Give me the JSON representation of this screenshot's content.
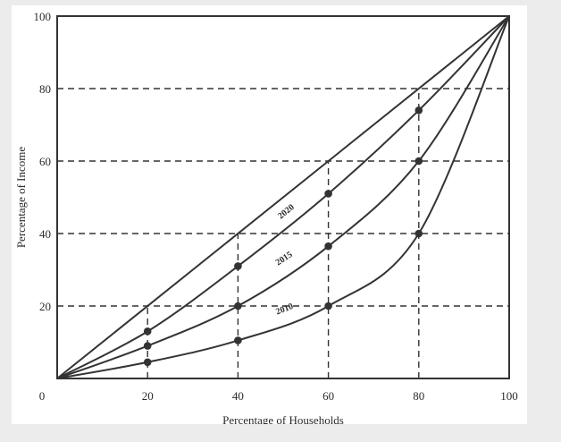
{
  "chart_data": {
    "type": "line",
    "xlabel": "Percentage of Households",
    "ylabel": "Percentage of Income",
    "xlim": [
      0,
      100
    ],
    "ylim": [
      0,
      100
    ],
    "x_ticks": [
      "0",
      "20",
      "40",
      "60",
      "80",
      "100"
    ],
    "y_ticks": [
      "20",
      "40",
      "60",
      "80",
      "100"
    ],
    "grid": "dashed reference lines at 20, 40, 60, 80",
    "colors": {
      "line": "#333333",
      "grid": "#333333",
      "frame": "#333333"
    },
    "series": [
      {
        "x": [
          0,
          100
        ],
        "y": [
          0,
          100
        ],
        "markers": false
      },
      {
        "name": "2020",
        "x": [
          0,
          20,
          40,
          60,
          80,
          100
        ],
        "y": [
          0,
          13,
          31,
          51,
          74,
          100
        ],
        "markers": true,
        "label_at": [
          51,
          45.5
        ]
      },
      {
        "name": "2015",
        "x": [
          0,
          20,
          40,
          60,
          80,
          100
        ],
        "y": [
          0,
          9,
          20,
          36.5,
          60,
          100
        ],
        "markers": true,
        "label_at": [
          50.5,
          32.5
        ]
      },
      {
        "name": "2010",
        "x": [
          0,
          20,
          40,
          60,
          80,
          100
        ],
        "y": [
          0,
          4.5,
          10.5,
          20,
          40,
          100
        ],
        "markers": true,
        "label_at": [
          50.5,
          18.5
        ]
      }
    ]
  }
}
